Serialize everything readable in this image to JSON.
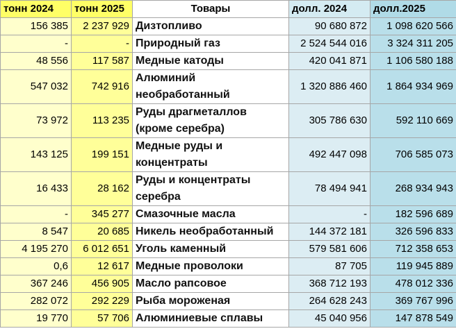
{
  "table": {
    "header": [
      "тонн 2024",
      "тонн 2025",
      "Товары",
      "долл. 2024",
      "долл.2025"
    ],
    "rows": [
      [
        "156 385",
        "2 237 929",
        "Дизтопливо",
        "90 680 872",
        "1 098 620 566"
      ],
      [
        "-",
        "-",
        "Природный газ",
        "2 524 544 016",
        "3 324 311 205"
      ],
      [
        "48 556",
        "117 587",
        "Медные катоды",
        "420 041 871",
        "1 106 580 188"
      ],
      [
        "547 032",
        "742 916",
        "Алюминий необработанный",
        "1 320 886 460",
        "1 864 934 969"
      ],
      [
        "73 972",
        "113 235",
        "Руды драгметаллов (кроме серебра)",
        "305 786 630",
        "592 110 669"
      ],
      [
        "143 125",
        "199 151",
        "Медные руды и концентраты",
        "492 447 098",
        "706 585 073"
      ],
      [
        "16 433",
        "28 162",
        "Руды и концентраты серебра",
        "78 494 941",
        "268 934 943"
      ],
      [
        "-",
        "345 277",
        "Смазочные масла",
        "-",
        "182 596 689"
      ],
      [
        "8 547",
        "20 685",
        "Никель необработанный",
        "144 372 181",
        "326 596 833"
      ],
      [
        "4 195 270",
        "6 012 651",
        "Уголь каменный",
        "579 581 606",
        "712 358 653"
      ],
      [
        "0,6",
        "12 617",
        "Медные проволоки",
        "87 705",
        "119 945 889"
      ],
      [
        "367 246",
        "456 905",
        "Масло рапсовое",
        "368 712 193",
        "478 012 336"
      ],
      [
        "282 072",
        "292 229",
        "Рыба мороженая",
        "264 628 243",
        "369 767 996"
      ],
      [
        "19 770",
        "57 706",
        "Алюминиевые сплавы",
        "45 040 956",
        "147 878 549"
      ]
    ]
  }
}
